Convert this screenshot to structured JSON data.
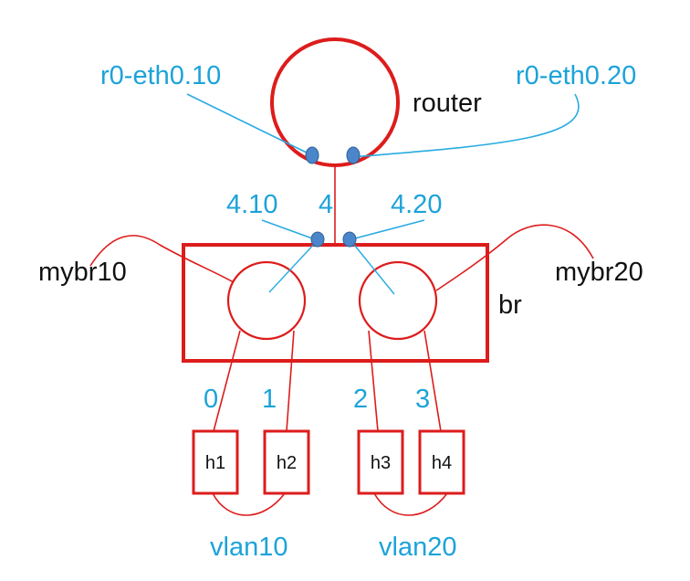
{
  "colors": {
    "red": "#dd1c1c",
    "blue_label": "#1ca3d9",
    "blue_line": "#29abe2",
    "port_fill": "#4a86c9",
    "port_stroke": "#2d5f96",
    "text": "#111111"
  },
  "router": {
    "name": "router",
    "iface_left": "r0-eth0.10",
    "iface_right": "r0-eth0.20"
  },
  "switch": {
    "name": "br",
    "trunk_port": "4",
    "subport_left": "4.10",
    "subport_right": "4.20",
    "bridge_left": "mybr10",
    "bridge_right": "mybr20"
  },
  "ports": [
    "0",
    "1",
    "2",
    "3"
  ],
  "hosts": [
    "h1",
    "h2",
    "h3",
    "h4"
  ],
  "vlans": [
    "vlan10",
    "vlan20"
  ]
}
